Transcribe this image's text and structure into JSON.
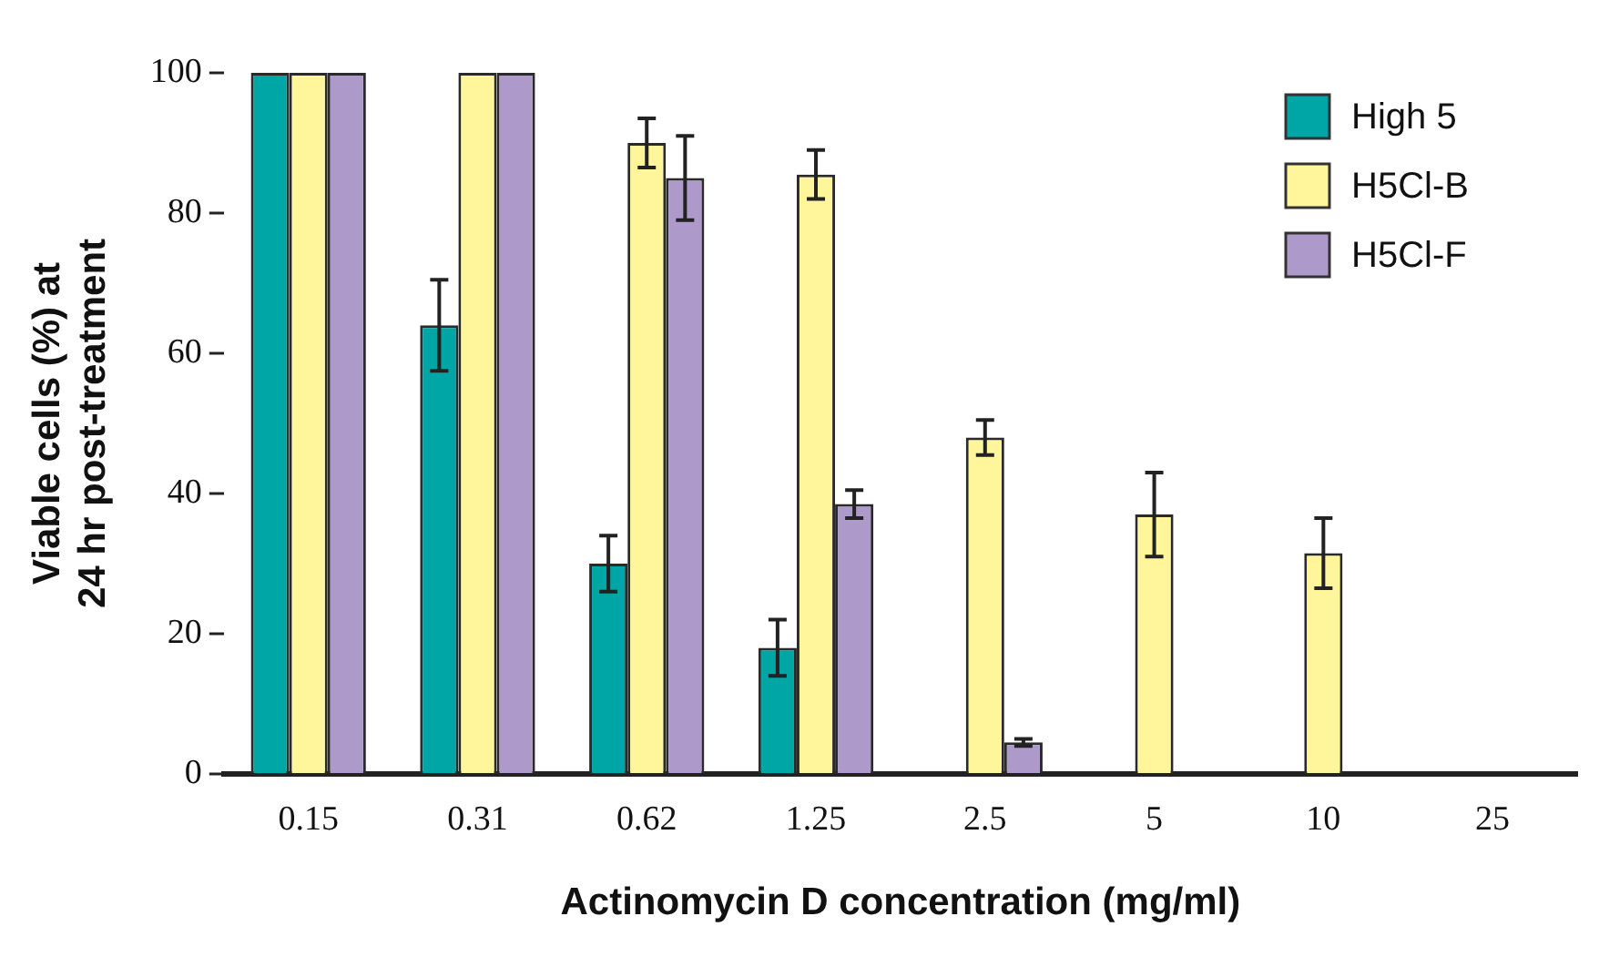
{
  "chart_data": {
    "type": "bar",
    "xlabel": "Actinomycin D concentration (mg/ml)",
    "ylabel": "Viable cells (%) at 24 hr post-treatment",
    "categories": [
      "0.15",
      "0.31",
      "0.62",
      "1.25",
      "2.5",
      "5",
      "10",
      "25"
    ],
    "ylim": [
      0,
      100
    ],
    "yticks": [
      0,
      20,
      40,
      60,
      80,
      100
    ],
    "grid": false,
    "legend": "top right",
    "series": [
      {
        "name": "High 5",
        "color": "#00a5a5",
        "values": [
          100,
          64,
          30,
          18,
          0,
          0,
          0,
          0
        ],
        "errors": [
          null,
          6.5,
          4,
          4,
          null,
          null,
          null,
          null
        ]
      },
      {
        "name": "H5Cl-B",
        "color": "#fff59a",
        "values": [
          100,
          100,
          90,
          85.5,
          48,
          37,
          31.5,
          0
        ],
        "errors": [
          null,
          null,
          3.5,
          3.5,
          2.5,
          6,
          5,
          null
        ]
      },
      {
        "name": "H5Cl-F",
        "color": "#ad9aca",
        "values": [
          100,
          100,
          85,
          38.5,
          4.5,
          0,
          0,
          0
        ],
        "errors": [
          null,
          null,
          6,
          2,
          0.5,
          null,
          null,
          null
        ]
      }
    ]
  }
}
